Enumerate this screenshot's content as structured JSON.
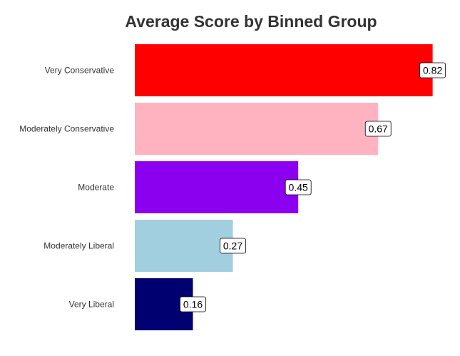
{
  "chart_data": {
    "type": "bar",
    "orientation": "horizontal",
    "title": "Average Score by Binned Group",
    "xlabel": "",
    "ylabel": "",
    "xlim": [
      0,
      0.86
    ],
    "grid": false,
    "legend": "none",
    "categories": [
      "Very Conservative",
      "Moderately Conservative",
      "Moderate",
      "Moderately Liberal",
      "Very Liberal"
    ],
    "values": [
      0.82,
      0.67,
      0.45,
      0.27,
      0.16
    ],
    "value_labels": [
      "0.82",
      "0.67",
      "0.45",
      "0.27",
      "0.16"
    ],
    "colors": [
      "#ff0000",
      "#ffb3c1",
      "#8b00ee",
      "#a2cfe0",
      "#000070"
    ]
  }
}
